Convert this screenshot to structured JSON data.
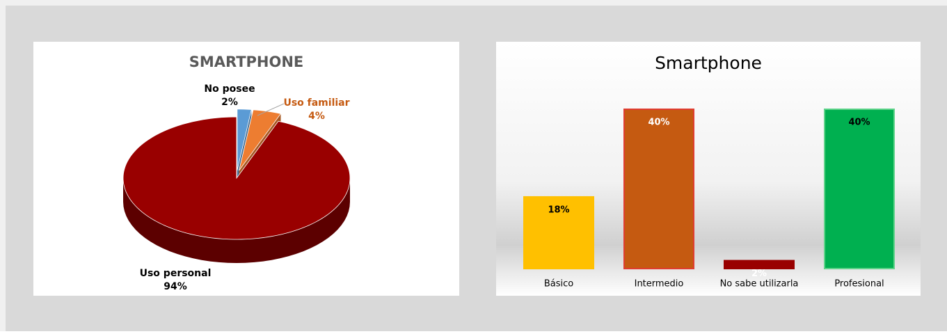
{
  "chart_data": [
    {
      "type": "pie",
      "title": "SMARTPHONE",
      "categories": [
        "No posee",
        "Uso familiar",
        "Uso personal"
      ],
      "values": [
        2,
        4,
        94
      ],
      "value_labels": [
        "2%",
        "4%",
        "94%"
      ],
      "colors": [
        "#5b9bd5",
        "#ed7d31",
        "#990000"
      ]
    },
    {
      "type": "bar",
      "title": "Smartphone",
      "categories": [
        "Básico",
        "Intermedio",
        "No sabe utilizarla",
        "Profesional"
      ],
      "values": [
        18,
        40,
        2,
        40
      ],
      "value_labels": [
        "18%",
        "40%",
        "2%",
        "40%"
      ],
      "colors": [
        "#ffc000",
        "#c55a11",
        "#990000",
        "#00b050"
      ]
    }
  ]
}
